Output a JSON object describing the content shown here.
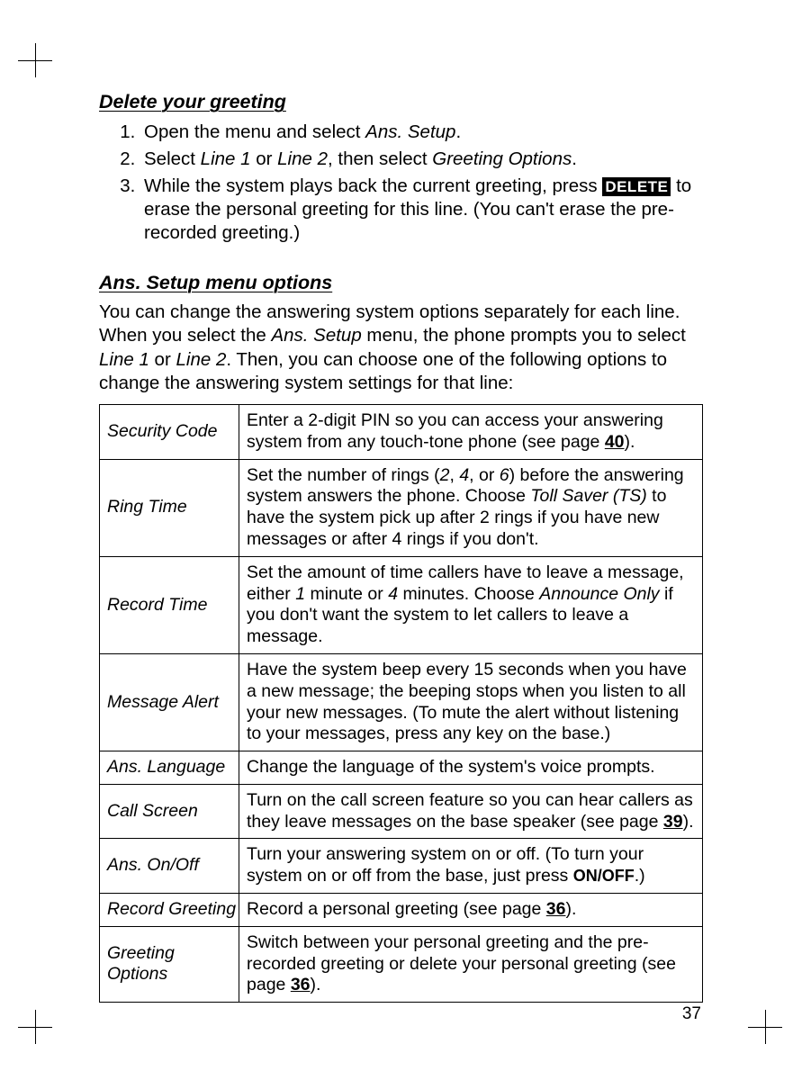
{
  "section1": {
    "heading": "Delete your greeting",
    "steps": [
      {
        "pre": "Open the menu and select ",
        "ital": "Ans. Setup",
        "post": "."
      },
      {
        "pre": "Select ",
        "ital": "Line 1",
        "mid1": " or ",
        "ital2": "Line 2",
        "mid2": ", then select ",
        "ital3": "Greeting Options",
        "post": "."
      }
    ],
    "step3_a": "While the system plays back the current greeting, press ",
    "step3_kbd": "DELETE",
    "step3_b": " to erase the personal greeting for this line. (You can't erase the pre-recorded greeting.)"
  },
  "section2": {
    "heading": "Ans. Setup menu options",
    "intro_a": "You can change the answering system options separately for each line. When you select the ",
    "intro_ital1": "Ans. Setup",
    "intro_b": " menu, the phone prompts you to select ",
    "intro_ital2": "Line 1",
    "intro_c": " or ",
    "intro_ital3": "Line 2",
    "intro_d": ". Then, you can choose one of the following options to change the answering system settings for that line:"
  },
  "table": {
    "rows": [
      {
        "label": "Security Code",
        "desc_a": "Enter a 2-digit PIN so you can access your answering system from any touch-tone phone (see page ",
        "pgref": "40",
        "desc_b": ")."
      },
      {
        "label": "Ring Time",
        "desc_a": "Set the number of rings (",
        "ital1": "2",
        "mid1": ", ",
        "ital2": "4",
        "mid2": ", or ",
        "ital3": "6",
        "mid3": ") before the answering system answers the phone. Choose ",
        "ital4": "Toll Saver (TS)",
        "desc_b": " to have the system pick up after 2 rings if you have new messages or after 4 rings if you don't."
      },
      {
        "label": "Record Time",
        "desc_a": "Set the amount of time callers have to leave a message, either ",
        "ital1": "1",
        "mid1": " minute or ",
        "ital2": "4",
        "mid2": " minutes. Choose ",
        "ital3": "Announce Only",
        "desc_b": " if you don't want the system to let callers to leave a message."
      },
      {
        "label": "Message Alert",
        "desc_a": "Have the system beep every 15 seconds when you have a new message; the beeping stops when you listen to all your new messages. (To mute the alert without listening to your messages, press any key on the base.)"
      },
      {
        "label": "Ans. Language",
        "desc_a": "Change the language of the system's voice prompts."
      },
      {
        "label": "Call Screen",
        "desc_a": "Turn on the call screen feature so you can hear callers as they leave messages on the base speaker (see page ",
        "pgref": "39",
        "desc_b": ")."
      },
      {
        "label": "Ans. On/Off",
        "desc_a": "Turn your answering system on or off. (To turn your system on or off from the base, just press ",
        "bold": "ON/OFF",
        "desc_b": ".)"
      },
      {
        "label": "Record Greeting",
        "desc_a": "Record a personal greeting (see page ",
        "pgref": "36",
        "desc_b": ")."
      },
      {
        "label": "Greeting Options",
        "desc_a": "Switch between your personal greeting and the pre-recorded greeting or delete your personal greeting (see page ",
        "pgref": "36",
        "desc_b": ")."
      }
    ]
  },
  "pageNumber": "37"
}
